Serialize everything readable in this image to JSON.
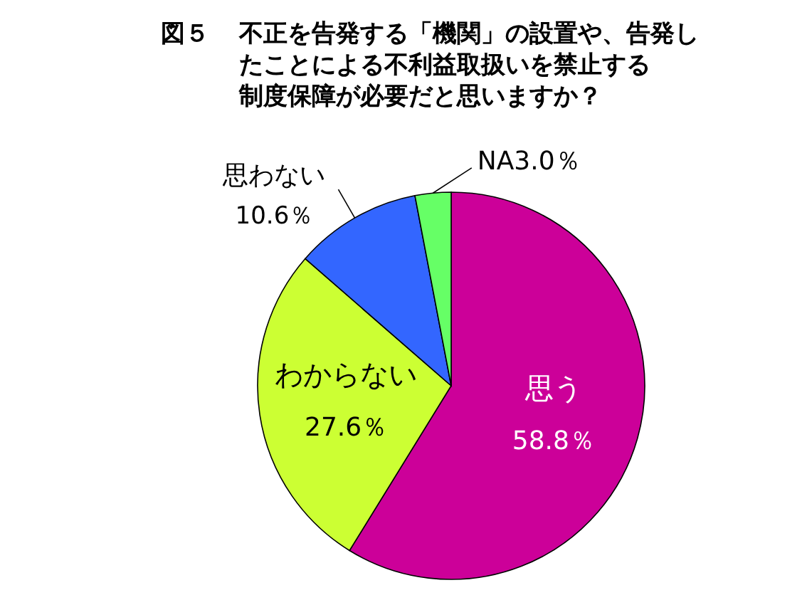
{
  "chart_data": {
    "type": "pie",
    "title": "図５　不正を告発する「機関」の設置や、告発したことによる不利益取扱いを禁止する制度保障が必要だと思いますか？",
    "categories": [
      "思う",
      "わからない",
      "思わない",
      "NA"
    ],
    "values": [
      58.8,
      27.6,
      10.6,
      3.0
    ],
    "colors": [
      "#cc0099",
      "#ccff33",
      "#3366ff",
      "#66ff66"
    ],
    "value_labels": [
      "58.8％",
      "27.6％",
      "10.6％",
      "3.0％"
    ]
  }
}
